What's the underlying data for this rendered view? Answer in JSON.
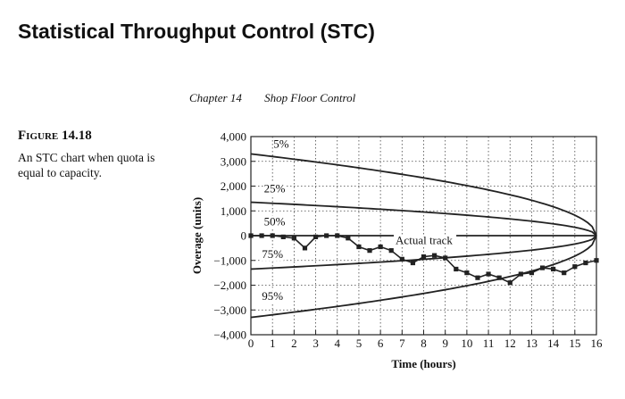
{
  "page": {
    "slide_title": "Statistical Throughput Control (STC)",
    "running_head": {
      "chapter": "Chapter 14",
      "section": "Shop Floor Control"
    },
    "figure_label": "Figure 14.18",
    "figure_caption": "An STC chart when quota is equal to capacity."
  },
  "chart_data": {
    "type": "line",
    "title": "",
    "xlabel": "Time (hours)",
    "ylabel": "Overage (units)",
    "xlim": [
      0,
      16
    ],
    "ylim": [
      -4000,
      4000
    ],
    "x_ticks": [
      0,
      1,
      2,
      3,
      4,
      5,
      6,
      7,
      8,
      9,
      10,
      11,
      12,
      13,
      14,
      15,
      16
    ],
    "x_tick_labels": [
      "0",
      "1",
      "2",
      "3",
      "4",
      "5",
      "6",
      "7",
      "8",
      "9",
      "10",
      "11",
      "12",
      "13",
      "14",
      "15",
      "16"
    ],
    "y_ticks": [
      4000,
      3000,
      2000,
      1000,
      0,
      -1000,
      -2000,
      -3000,
      -4000
    ],
    "y_tick_labels": [
      "4,000",
      "3,000",
      "2,000",
      "1,000",
      "0",
      "−1,000",
      "−2,000",
      "−3,000",
      "−4,000"
    ],
    "grid": true,
    "legend": "none",
    "colors": {
      "line": "#222222",
      "grid": "#444444"
    },
    "series": [
      {
        "label": "5%",
        "label_x": 1.4,
        "label_y": 3550,
        "start_value": 3300,
        "x": [
          0,
          16
        ],
        "shape": "sqrt-taper"
      },
      {
        "label": "25%",
        "label_x": 1.1,
        "label_y": 1750,
        "start_value": 1350,
        "x": [
          0,
          16
        ],
        "shape": "sqrt-taper"
      },
      {
        "label": "50%",
        "label_x": 1.1,
        "label_y": 420,
        "start_value": 0,
        "x": [
          0,
          16
        ],
        "shape": "sqrt-taper"
      },
      {
        "label": "75%",
        "label_x": 1.0,
        "label_y": -900,
        "start_value": -1350,
        "x": [
          0,
          16
        ],
        "shape": "sqrt-taper"
      },
      {
        "label": "95%",
        "label_x": 1.0,
        "label_y": -2600,
        "start_value": -3300,
        "x": [
          0,
          16
        ],
        "shape": "sqrt-taper"
      },
      {
        "label": "Actual track",
        "label_x": 6.7,
        "label_y": -350,
        "markers": true,
        "x": [
          0,
          0.5,
          1,
          1.5,
          2,
          2.5,
          3,
          3.5,
          4,
          4.5,
          5,
          5.5,
          6,
          6.5,
          7,
          7.5,
          8,
          8.5,
          9,
          9.5,
          10,
          10.5,
          11,
          11.5,
          12,
          12.5,
          13,
          13.5,
          14,
          14.5,
          15,
          15.5,
          16
        ],
        "y": [
          0,
          0,
          0,
          -50,
          -100,
          -500,
          -50,
          0,
          0,
          -100,
          -450,
          -600,
          -450,
          -600,
          -950,
          -1100,
          -850,
          -800,
          -900,
          -1350,
          -1500,
          -1700,
          -1550,
          -1700,
          -1900,
          -1550,
          -1500,
          -1300,
          -1350,
          -1500,
          -1250,
          -1100,
          -1000
        ]
      }
    ]
  }
}
